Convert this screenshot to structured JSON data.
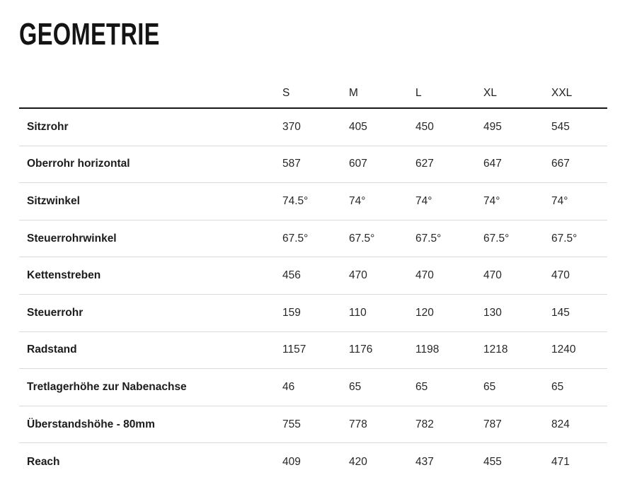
{
  "page": {
    "title": "GEOMETRIE"
  },
  "table": {
    "size_headers": [
      "S",
      "M",
      "L",
      "XL",
      "XXL"
    ],
    "rows": [
      {
        "label": "Sitzrohr",
        "values": [
          "370",
          "405",
          "450",
          "495",
          "545"
        ]
      },
      {
        "label": "Oberrohr horizontal",
        "values": [
          "587",
          "607",
          "627",
          "647",
          "667"
        ]
      },
      {
        "label": "Sitzwinkel",
        "values": [
          "74.5°",
          "74°",
          "74°",
          "74°",
          "74°"
        ]
      },
      {
        "label": "Steuerrohrwinkel",
        "values": [
          "67.5°",
          "67.5°",
          "67.5°",
          "67.5°",
          "67.5°"
        ]
      },
      {
        "label": "Kettenstreben",
        "values": [
          "456",
          "470",
          "470",
          "470",
          "470"
        ]
      },
      {
        "label": "Steuerrohr",
        "values": [
          "159",
          "110",
          "120",
          "130",
          "145"
        ]
      },
      {
        "label": "Radstand",
        "values": [
          "1157",
          "1176",
          "1198",
          "1218",
          "1240"
        ]
      },
      {
        "label": "Tretlagerhöhe zur Nabenachse",
        "values": [
          "46",
          "65",
          "65",
          "65",
          "65"
        ]
      },
      {
        "label": "Überstandshöhe - 80mm",
        "values": [
          "755",
          "778",
          "782",
          "787",
          "824"
        ]
      },
      {
        "label": "Reach",
        "values": [
          "409",
          "420",
          "437",
          "455",
          "471"
        ]
      }
    ]
  },
  "chart_data": {
    "type": "table",
    "title": "GEOMETRIE",
    "columns": [
      "",
      "S",
      "M",
      "L",
      "XL",
      "XXL"
    ],
    "rows": [
      [
        "Sitzrohr",
        "370",
        "405",
        "450",
        "495",
        "545"
      ],
      [
        "Oberrohr horizontal",
        "587",
        "607",
        "627",
        "647",
        "667"
      ],
      [
        "Sitzwinkel",
        "74.5°",
        "74°",
        "74°",
        "74°",
        "74°"
      ],
      [
        "Steuerrohrwinkel",
        "67.5°",
        "67.5°",
        "67.5°",
        "67.5°",
        "67.5°"
      ],
      [
        "Kettenstreben",
        "456",
        "470",
        "470",
        "470",
        "470"
      ],
      [
        "Steuerrohr",
        "159",
        "110",
        "120",
        "130",
        "145"
      ],
      [
        "Radstand",
        "1157",
        "1176",
        "1198",
        "1218",
        "1240"
      ],
      [
        "Tretlagerhöhe zur Nabenachse",
        "46",
        "65",
        "65",
        "65",
        "65"
      ],
      [
        "Überstandshöhe - 80mm",
        "755",
        "778",
        "782",
        "787",
        "824"
      ],
      [
        "Reach",
        "409",
        "420",
        "437",
        "455",
        "471"
      ]
    ]
  },
  "colors": {
    "background": "#ffffff",
    "heading_text": "#141414",
    "body_text": "#212121",
    "header_rule": "#161616",
    "row_divider": "#dadada"
  }
}
